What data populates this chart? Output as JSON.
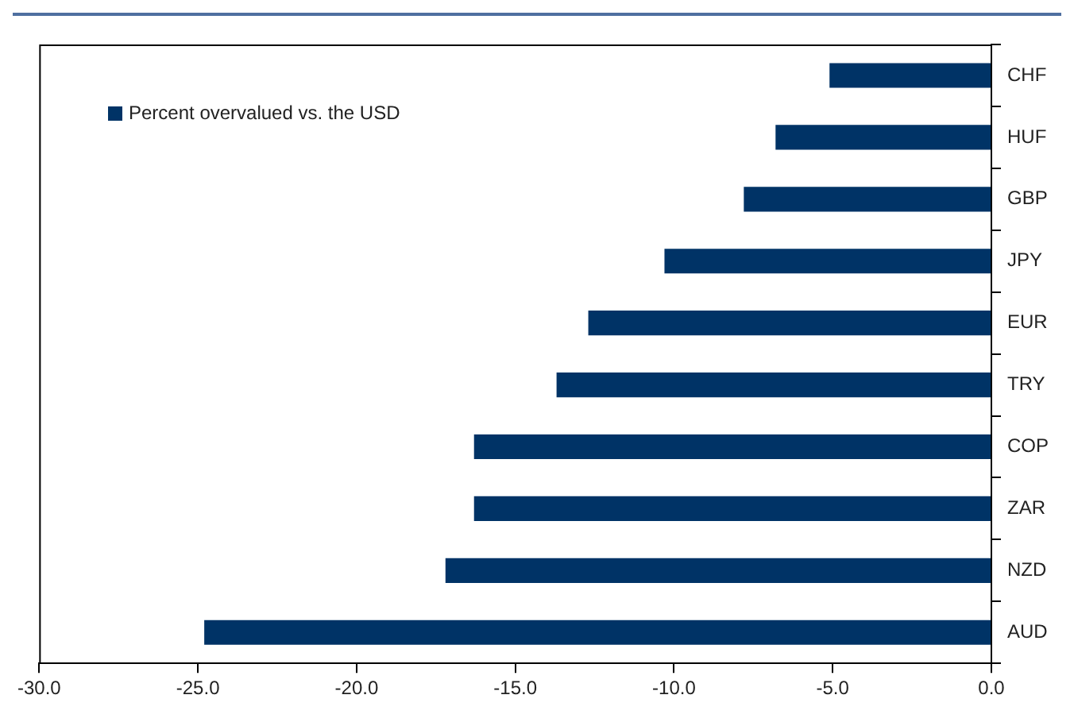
{
  "chart_data": {
    "type": "bar",
    "orientation": "horizontal",
    "categories": [
      "CHF",
      "HUF",
      "GBP",
      "JPY",
      "EUR",
      "TRY",
      "COP",
      "ZAR",
      "NZD",
      "AUD"
    ],
    "series": [
      {
        "name": "Percent overvalued vs. the USD",
        "color": "#003366",
        "values": [
          -5.1,
          -6.8,
          -7.8,
          -10.3,
          -12.7,
          -13.7,
          -16.3,
          -16.3,
          -17.2,
          -24.8
        ]
      }
    ],
    "xlim": [
      -30,
      0
    ],
    "xticks": [
      {
        "value": -30,
        "label": "-30.0"
      },
      {
        "value": -25,
        "label": "-25.0"
      },
      {
        "value": -20,
        "label": "-20.0"
      },
      {
        "value": -15,
        "label": "-15.0"
      },
      {
        "value": -10,
        "label": "-10.0"
      },
      {
        "value": -5,
        "label": "-5.0"
      },
      {
        "value": 0,
        "label": "0.0"
      }
    ],
    "grid": false,
    "legend": "top left"
  }
}
